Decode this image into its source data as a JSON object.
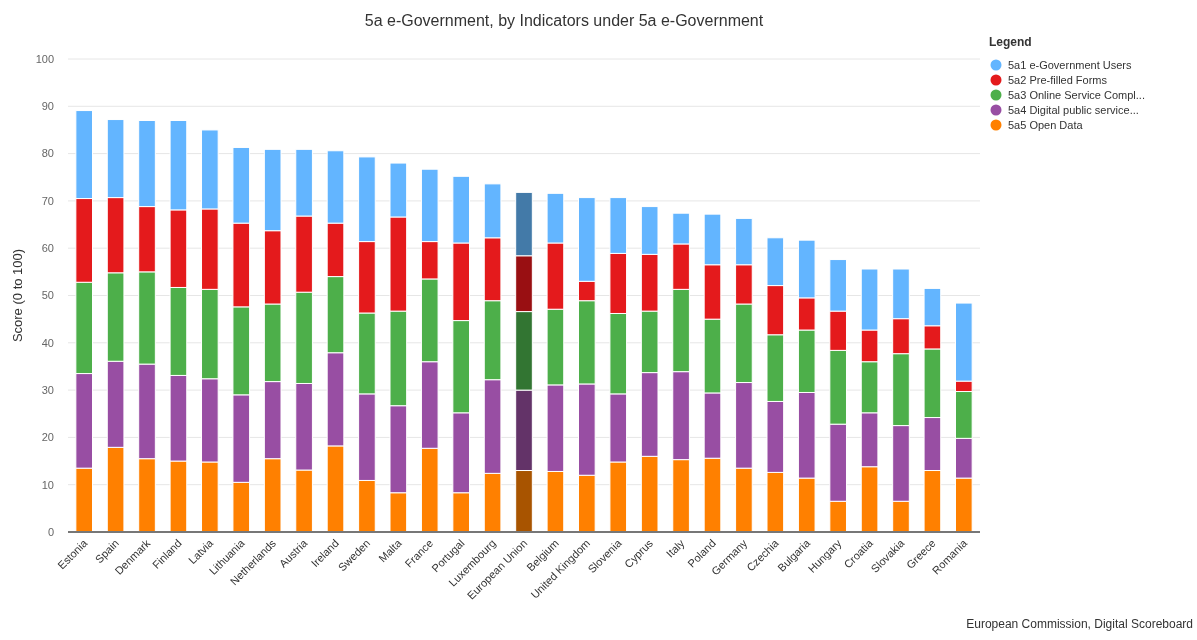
{
  "chart_data": {
    "type": "bar",
    "title": "5a e-Government, by Indicators under 5a e-Government",
    "ylabel": "Score (0 to 100)",
    "legend_title": "Legend",
    "annotations": [
      "European Commission, Digital Scoreboard"
    ],
    "categories": [
      "Estonia",
      "Spain",
      "Denmark",
      "Finland",
      "Latvia",
      "Lithuania",
      "Netherlands",
      "Austria",
      "Ireland",
      "Sweden",
      "Malta",
      "France",
      "Portugal",
      "Luxembourg",
      "European Union",
      "Belgium",
      "United Kingdom",
      "Slovenia",
      "Cyprus",
      "Italy",
      "Poland",
      "Germany",
      "Czechia",
      "Bulgaria",
      "Hungary",
      "Croatia",
      "Slovakia",
      "Greece",
      "Romania"
    ],
    "stacked": true,
    "ylim": [
      0,
      100
    ],
    "yticks": [
      0,
      10,
      20,
      30,
      40,
      50,
      60,
      70,
      80,
      90,
      100
    ],
    "grid": "y",
    "legend": "top right",
    "series": [
      {
        "name": "5a5 Open Data",
        "color": "#ff8000",
        "colors": [
          "#ff8000",
          "#ff8000",
          "#ff8000",
          "#ff8000",
          "#ff8000",
          "#ff8000",
          "#ff8000",
          "#ff8000",
          "#ff8000",
          "#ff8000",
          "#ff8000",
          "#ff8000",
          "#ff8000",
          "#ff8000",
          "#a85400",
          "#ff8000",
          "#ff8000",
          "#ff8000",
          "#ff8000",
          "#ff8000",
          "#ff8000",
          "#ff8000",
          "#ff8000",
          "#ff8000",
          "#ff8000",
          "#ff8000",
          "#ff8000",
          "#ff8000",
          "#ff8000"
        ],
        "values": [
          13.5,
          17.9,
          15.5,
          15.0,
          14.8,
          10.5,
          15.5,
          13.1,
          18.2,
          10.9,
          8.3,
          17.7,
          8.3,
          12.4,
          13.0,
          12.8,
          12.0,
          14.8,
          16.0,
          15.3,
          15.6,
          13.5,
          12.6,
          11.4,
          6.5,
          13.8,
          6.5,
          13.0,
          11.4
        ]
      },
      {
        "name": "5a4 Digital public service...",
        "color": "#984ea3",
        "colors": [
          "#984ea3",
          "#984ea3",
          "#984ea3",
          "#984ea3",
          "#984ea3",
          "#984ea3",
          "#984ea3",
          "#984ea3",
          "#984ea3",
          "#984ea3",
          "#984ea3",
          "#984ea3",
          "#984ea3",
          "#984ea3",
          "#633368",
          "#984ea3",
          "#984ea3",
          "#984ea3",
          "#984ea3",
          "#984ea3",
          "#984ea3",
          "#984ea3",
          "#984ea3",
          "#984ea3",
          "#984ea3",
          "#984ea3",
          "#984ea3",
          "#984ea3",
          "#984ea3"
        ],
        "values": [
          20.0,
          18.2,
          20.0,
          18.1,
          17.6,
          18.5,
          16.3,
          18.3,
          19.7,
          18.3,
          18.4,
          18.3,
          16.9,
          19.8,
          17.0,
          18.3,
          19.3,
          14.4,
          17.7,
          18.6,
          13.8,
          18.1,
          15.0,
          18.1,
          16.3,
          11.4,
          16.0,
          11.2,
          8.4
        ]
      },
      {
        "name": "5a3 Online Service Compl...",
        "color": "#4daf4a",
        "colors": [
          "#4daf4a",
          "#4daf4a",
          "#4daf4a",
          "#4daf4a",
          "#4daf4a",
          "#4daf4a",
          "#4daf4a",
          "#4daf4a",
          "#4daf4a",
          "#4daf4a",
          "#4daf4a",
          "#4daf4a",
          "#4daf4a",
          "#4daf4a",
          "#327532",
          "#4daf4a",
          "#4daf4a",
          "#4daf4a",
          "#4daf4a",
          "#4daf4a",
          "#4daf4a",
          "#4daf4a",
          "#4daf4a",
          "#4daf4a",
          "#4daf4a",
          "#4daf4a",
          "#4daf4a",
          "#4daf4a",
          "#4daf4a"
        ],
        "values": [
          19.3,
          18.7,
          19.5,
          18.6,
          18.9,
          18.6,
          16.4,
          19.3,
          16.1,
          17.1,
          20.0,
          17.5,
          19.5,
          16.7,
          16.6,
          16.0,
          17.6,
          17.0,
          13.0,
          17.4,
          15.6,
          16.6,
          14.1,
          13.2,
          15.6,
          10.8,
          15.2,
          14.5,
          9.9
        ]
      },
      {
        "name": "5a2 Pre-filled Forms",
        "color": "#e41a1c",
        "colors": [
          "#e41a1c",
          "#e41a1c",
          "#e41a1c",
          "#e41a1c",
          "#e41a1c",
          "#e41a1c",
          "#e41a1c",
          "#e41a1c",
          "#e41a1c",
          "#e41a1c",
          "#e41a1c",
          "#e41a1c",
          "#e41a1c",
          "#e41a1c",
          "#990f12",
          "#e41a1c",
          "#e41a1c",
          "#e41a1c",
          "#e41a1c",
          "#e41a1c",
          "#e41a1c",
          "#e41a1c",
          "#e41a1c",
          "#e41a1c",
          "#e41a1c",
          "#e41a1c",
          "#e41a1c",
          "#e41a1c",
          "#e41a1c"
        ],
        "values": [
          17.7,
          15.9,
          13.8,
          16.4,
          17.0,
          17.7,
          15.5,
          16.1,
          11.3,
          15.1,
          19.9,
          7.9,
          16.4,
          13.3,
          11.8,
          14.0,
          4.1,
          12.7,
          12.0,
          9.6,
          11.5,
          8.3,
          10.4,
          6.8,
          8.3,
          6.7,
          7.4,
          4.9,
          2.2
        ]
      },
      {
        "name": "5a1 e-Government Users",
        "color": "#63b5ff",
        "colors": [
          "#63b5ff",
          "#63b5ff",
          "#63b5ff",
          "#63b5ff",
          "#63b5ff",
          "#63b5ff",
          "#63b5ff",
          "#63b5ff",
          "#63b5ff",
          "#63b5ff",
          "#63b5ff",
          "#63b5ff",
          "#63b5ff",
          "#63b5ff",
          "#437aa8",
          "#63b5ff",
          "#63b5ff",
          "#63b5ff",
          "#63b5ff",
          "#63b5ff",
          "#63b5ff",
          "#63b5ff",
          "#63b5ff",
          "#63b5ff",
          "#63b5ff",
          "#63b5ff",
          "#63b5ff",
          "#63b5ff",
          "#63b5ff"
        ],
        "values": [
          18.6,
          16.5,
          18.2,
          18.9,
          16.7,
          16.0,
          17.2,
          14.1,
          15.3,
          17.9,
          11.4,
          15.3,
          14.1,
          11.4,
          13.4,
          10.5,
          17.7,
          11.8,
          10.1,
          6.5,
          10.7,
          9.8,
          10.1,
          12.2,
          10.9,
          12.9,
          10.5,
          7.9,
          16.5
        ]
      }
    ]
  }
}
